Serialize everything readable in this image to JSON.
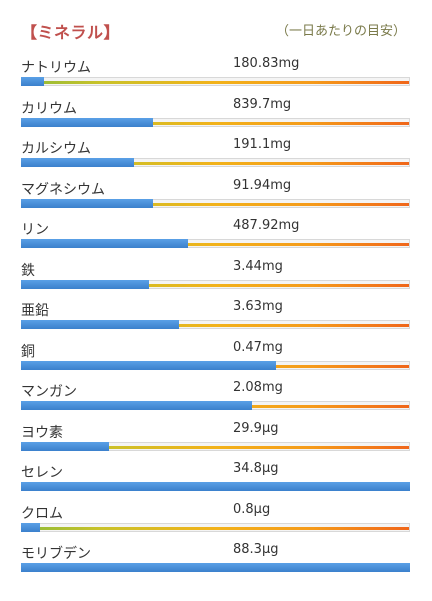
{
  "header": {
    "title": "【ミネラル】",
    "note": "（一日あたりの目安）"
  },
  "colors": {
    "title": "#c0504d",
    "bar_fill": "#4a90d9",
    "scale_start": "#8dbb3a",
    "scale_end": "#f0661a"
  },
  "minerals": [
    {
      "name": "ナトリウム",
      "value": "180.83mg",
      "fill_ratio": 0.06
    },
    {
      "name": "カリウム",
      "value": "839.7mg",
      "fill_ratio": 0.34
    },
    {
      "name": "カルシウム",
      "value": "191.1mg",
      "fill_ratio": 0.29
    },
    {
      "name": "マグネシウム",
      "value": "91.94mg",
      "fill_ratio": 0.34
    },
    {
      "name": "リン",
      "value": "487.92mg",
      "fill_ratio": 0.43
    },
    {
      "name": "鉄",
      "value": "3.44mg",
      "fill_ratio": 0.33
    },
    {
      "name": "亜鉛",
      "value": "3.63mg",
      "fill_ratio": 0.405
    },
    {
      "name": "銅",
      "value": "0.47mg",
      "fill_ratio": 0.655
    },
    {
      "name": "マンガン",
      "value": "2.08mg",
      "fill_ratio": 0.595
    },
    {
      "name": "ヨウ素",
      "value": "29.9μg",
      "fill_ratio": 0.225
    },
    {
      "name": "セレン",
      "value": "34.8μg",
      "fill_ratio": 1.0
    },
    {
      "name": "クロム",
      "value": "0.8μg",
      "fill_ratio": 0.05
    },
    {
      "name": "モリブデン",
      "value": "88.3μg",
      "fill_ratio": 1.0
    }
  ]
}
